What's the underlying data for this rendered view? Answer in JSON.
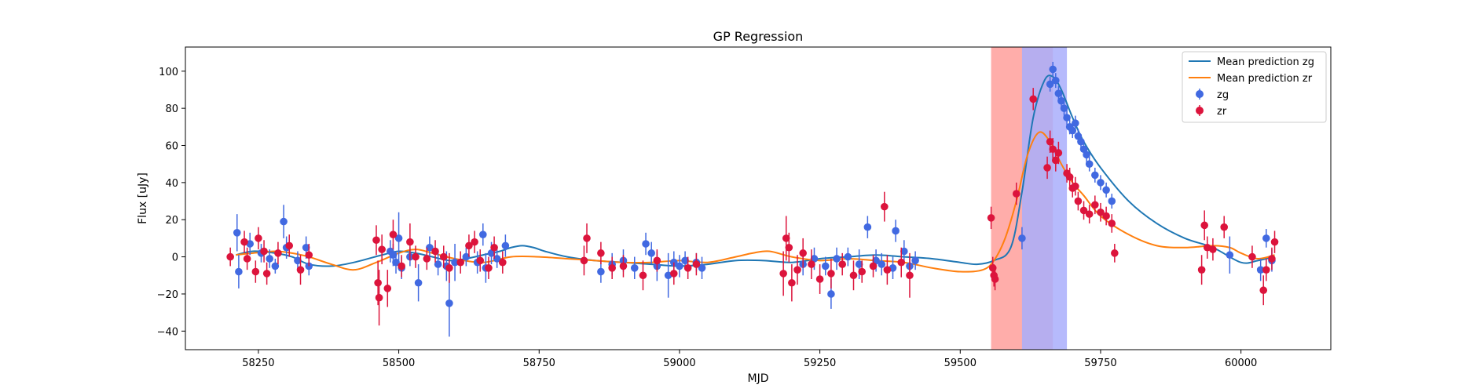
{
  "chart_data": {
    "type": "scatter",
    "title": "GP Regression",
    "xlabel": "MJD",
    "ylabel": "Flux [uJy]",
    "xlim": [
      58120,
      60160
    ],
    "ylim": [
      -50,
      113
    ],
    "xticks": [
      58250,
      58500,
      58750,
      59000,
      59250,
      59500,
      59750,
      60000
    ],
    "yticks": [
      -40,
      -20,
      0,
      20,
      40,
      60,
      80,
      100
    ],
    "grid": false,
    "legend_position": "top-right",
    "shaded_regions": [
      {
        "x_start": 59555,
        "x_end": 59665,
        "color": "#ff9f9b"
      },
      {
        "x_start": 59610,
        "x_end": 59690,
        "color": "#a9aefc"
      }
    ],
    "lines": [
      {
        "name": "Mean prediction zg",
        "color": "#1f77b4",
        "x": [
          58210,
          58240,
          58280,
          58310,
          58340,
          58380,
          58420,
          58470,
          58500,
          58530,
          58560,
          58590,
          58620,
          58650,
          58680,
          58700,
          58720,
          58740,
          58760,
          58800,
          58850,
          58900,
          58950,
          59000,
          59050,
          59100,
          59150,
          59200,
          59250,
          59300,
          59350,
          59400,
          59450,
          59500,
          59530,
          59560,
          59590,
          59610,
          59630,
          59650,
          59665,
          59680,
          59700,
          59720,
          59750,
          59800,
          59850,
          59900,
          59950,
          60000,
          60030,
          60060
        ],
        "y": [
          1,
          3,
          2,
          0,
          -4,
          -5,
          -3,
          1,
          3,
          2,
          0,
          -2,
          -1,
          1,
          3,
          5,
          6,
          5,
          3,
          0,
          -2,
          -3,
          -4,
          -5,
          -4,
          -2,
          -2,
          -3,
          -1,
          0,
          1,
          0,
          -1,
          -3,
          -4,
          -2,
          5,
          35,
          75,
          95,
          97,
          90,
          75,
          62,
          48,
          30,
          18,
          10,
          5,
          -3,
          -2,
          0
        ]
      },
      {
        "name": "Mean prediction zr",
        "color": "#ff7f0e",
        "x": [
          58210,
          58240,
          58280,
          58310,
          58340,
          58380,
          58420,
          58460,
          58500,
          58530,
          58560,
          58600,
          58650,
          58700,
          58750,
          58800,
          58850,
          58900,
          58950,
          59000,
          59050,
          59100,
          59130,
          59160,
          59200,
          59250,
          59300,
          59350,
          59400,
          59450,
          59500,
          59540,
          59560,
          59580,
          59600,
          59620,
          59640,
          59660,
          59680,
          59700,
          59720,
          59750,
          59800,
          59850,
          59900,
          59950,
          59980,
          60000,
          60030,
          60060
        ],
        "y": [
          1,
          2,
          3,
          2,
          0,
          -4,
          -7,
          -3,
          2,
          4,
          2,
          -1,
          -3,
          0,
          0,
          -1,
          -2,
          -3,
          -3,
          -2,
          -3,
          0,
          2,
          3,
          0,
          -2,
          -1,
          -2,
          -3,
          -6,
          -8,
          -7,
          -2,
          10,
          30,
          55,
          67,
          62,
          50,
          40,
          33,
          22,
          12,
          6,
          5,
          6,
          5,
          2,
          -1,
          1
        ]
      },
      {
        "name": "",
        "color": "#aaaaaa",
        "x": [],
        "y": []
      }
    ],
    "series": [
      {
        "name": "zg",
        "color": "#4169e1",
        "points": [
          [
            58212,
            13,
            10
          ],
          [
            58215,
            -8,
            9
          ],
          [
            58235,
            7,
            6
          ],
          [
            58255,
            2,
            5
          ],
          [
            58270,
            -1,
            5
          ],
          [
            58280,
            -5,
            4
          ],
          [
            58295,
            19,
            9
          ],
          [
            58300,
            5,
            6
          ],
          [
            58320,
            -2,
            5
          ],
          [
            58335,
            5,
            6
          ],
          [
            58340,
            -5,
            5
          ],
          [
            58485,
            3,
            6
          ],
          [
            58490,
            1,
            6
          ],
          [
            58495,
            -3,
            6
          ],
          [
            58500,
            10,
            14
          ],
          [
            58505,
            -6,
            6
          ],
          [
            58520,
            0,
            5
          ],
          [
            58535,
            -14,
            10
          ],
          [
            58555,
            5,
            6
          ],
          [
            58570,
            -4,
            6
          ],
          [
            58585,
            -5,
            8
          ],
          [
            58590,
            -25,
            18
          ],
          [
            58600,
            -3,
            10
          ],
          [
            58620,
            0,
            5
          ],
          [
            58640,
            -3,
            6
          ],
          [
            58650,
            12,
            6
          ],
          [
            58655,
            -6,
            8
          ],
          [
            58665,
            2,
            6
          ],
          [
            58675,
            -1,
            5
          ],
          [
            58690,
            6,
            6
          ],
          [
            58860,
            -8,
            6
          ],
          [
            58880,
            -4,
            6
          ],
          [
            58900,
            -2,
            6
          ],
          [
            58920,
            -6,
            6
          ],
          [
            58940,
            7,
            6
          ],
          [
            58950,
            2,
            6
          ],
          [
            58960,
            -5,
            8
          ],
          [
            58980,
            -10,
            12
          ],
          [
            58990,
            -3,
            6
          ],
          [
            59000,
            -5,
            6
          ],
          [
            59010,
            -2,
            5
          ],
          [
            59030,
            -3,
            5
          ],
          [
            59040,
            -6,
            6
          ],
          [
            59220,
            -4,
            6
          ],
          [
            59240,
            -1,
            6
          ],
          [
            59260,
            -5,
            5
          ],
          [
            59270,
            -20,
            8
          ],
          [
            59280,
            -1,
            6
          ],
          [
            59300,
            0,
            5
          ],
          [
            59320,
            -4,
            8
          ],
          [
            59335,
            16,
            6
          ],
          [
            59350,
            -2,
            6
          ],
          [
            59360,
            -4,
            6
          ],
          [
            59380,
            -6,
            6
          ],
          [
            59385,
            14,
            6
          ],
          [
            59400,
            3,
            6
          ],
          [
            59410,
            -5,
            5
          ],
          [
            59420,
            -2,
            5
          ],
          [
            59610,
            10,
            6
          ],
          [
            59660,
            93,
            4
          ],
          [
            59665,
            101,
            4
          ],
          [
            59670,
            95,
            4
          ],
          [
            59675,
            88,
            4
          ],
          [
            59680,
            84,
            4
          ],
          [
            59685,
            80,
            4
          ],
          [
            59690,
            75,
            4
          ],
          [
            59695,
            70,
            4
          ],
          [
            59700,
            68,
            4
          ],
          [
            59705,
            72,
            4
          ],
          [
            59710,
            65,
            4
          ],
          [
            59715,
            62,
            4
          ],
          [
            59720,
            58,
            4
          ],
          [
            59725,
            55,
            4
          ],
          [
            59730,
            50,
            4
          ],
          [
            59740,
            44,
            4
          ],
          [
            59750,
            40,
            4
          ],
          [
            59760,
            36,
            4
          ],
          [
            59770,
            30,
            4
          ],
          [
            59980,
            1,
            10
          ],
          [
            60035,
            -7,
            6
          ],
          [
            60045,
            10,
            5
          ],
          [
            60055,
            -2,
            6
          ]
        ]
      },
      {
        "name": "zr",
        "color": "#dc143c",
        "points": [
          [
            58200,
            0,
            5
          ],
          [
            58225,
            8,
            6
          ],
          [
            58230,
            -1,
            6
          ],
          [
            58245,
            -8,
            6
          ],
          [
            58250,
            10,
            6
          ],
          [
            58260,
            3,
            6
          ],
          [
            58265,
            -9,
            6
          ],
          [
            58285,
            2,
            6
          ],
          [
            58305,
            6,
            6
          ],
          [
            58325,
            -7,
            8
          ],
          [
            58340,
            1,
            6
          ],
          [
            58460,
            9,
            8
          ],
          [
            58463,
            -14,
            12
          ],
          [
            58465,
            -22,
            15
          ],
          [
            58470,
            4,
            8
          ],
          [
            58480,
            -17,
            10
          ],
          [
            58490,
            12,
            8
          ],
          [
            58505,
            -5,
            6
          ],
          [
            58520,
            8,
            10
          ],
          [
            58530,
            0,
            6
          ],
          [
            58550,
            -1,
            6
          ],
          [
            58565,
            3,
            6
          ],
          [
            58580,
            0,
            6
          ],
          [
            58590,
            -6,
            8
          ],
          [
            58610,
            -3,
            6
          ],
          [
            58625,
            6,
            6
          ],
          [
            58635,
            8,
            6
          ],
          [
            58645,
            -2,
            6
          ],
          [
            58660,
            -6,
            6
          ],
          [
            58670,
            5,
            6
          ],
          [
            58685,
            -3,
            6
          ],
          [
            58830,
            -2,
            8
          ],
          [
            58835,
            10,
            8
          ],
          [
            58860,
            2,
            6
          ],
          [
            58880,
            -6,
            6
          ],
          [
            58900,
            -5,
            6
          ],
          [
            58935,
            -10,
            8
          ],
          [
            58960,
            -2,
            6
          ],
          [
            58990,
            -9,
            6
          ],
          [
            59015,
            -6,
            6
          ],
          [
            59030,
            -4,
            6
          ],
          [
            59185,
            -9,
            12
          ],
          [
            59190,
            10,
            12
          ],
          [
            59195,
            5,
            8
          ],
          [
            59200,
            -14,
            10
          ],
          [
            59210,
            -7,
            8
          ],
          [
            59220,
            2,
            8
          ],
          [
            59235,
            -4,
            8
          ],
          [
            59250,
            -12,
            8
          ],
          [
            59270,
            -9,
            8
          ],
          [
            59290,
            -4,
            6
          ],
          [
            59310,
            -10,
            8
          ],
          [
            59325,
            -8,
            6
          ],
          [
            59345,
            -5,
            6
          ],
          [
            59365,
            27,
            8
          ],
          [
            59370,
            -7,
            8
          ],
          [
            59395,
            -3,
            8
          ],
          [
            59410,
            -10,
            12
          ],
          [
            59555,
            21,
            6
          ],
          [
            59558,
            -6,
            6
          ],
          [
            59560,
            -10,
            6
          ],
          [
            59562,
            -12,
            6
          ],
          [
            59600,
            34,
            6
          ],
          [
            59630,
            85,
            6
          ],
          [
            59655,
            48,
            6
          ],
          [
            59660,
            62,
            6
          ],
          [
            59665,
            58,
            6
          ],
          [
            59670,
            52,
            6
          ],
          [
            59675,
            56,
            6
          ],
          [
            59690,
            45,
            5
          ],
          [
            59695,
            43,
            5
          ],
          [
            59700,
            37,
            5
          ],
          [
            59705,
            38,
            5
          ],
          [
            59710,
            30,
            5
          ],
          [
            59720,
            25,
            5
          ],
          [
            59730,
            23,
            5
          ],
          [
            59740,
            28,
            5
          ],
          [
            59750,
            24,
            5
          ],
          [
            59760,
            22,
            5
          ],
          [
            59770,
            18,
            5
          ],
          [
            59775,
            2,
            5
          ],
          [
            59930,
            -7,
            8
          ],
          [
            59935,
            17,
            8
          ],
          [
            59940,
            5,
            6
          ],
          [
            59950,
            4,
            6
          ],
          [
            59970,
            16,
            6
          ],
          [
            60020,
            0,
            6
          ],
          [
            60040,
            -18,
            8
          ],
          [
            60045,
            -7,
            6
          ],
          [
            60055,
            -1,
            6
          ],
          [
            60060,
            8,
            6
          ]
        ]
      }
    ]
  }
}
